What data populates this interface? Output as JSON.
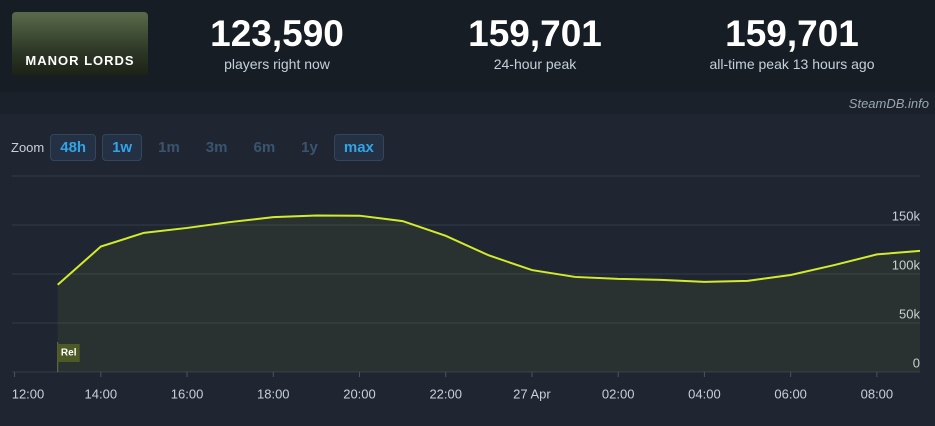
{
  "header": {
    "game": "MANOR LORDS",
    "stats": [
      {
        "value": "123,590",
        "label": "players right now"
      },
      {
        "value": "159,701",
        "label": "24-hour peak"
      },
      {
        "value": "159,701",
        "label": "all-time peak 13 hours ago"
      }
    ],
    "source": "SteamDB.info"
  },
  "zoom": {
    "label": "Zoom",
    "options": [
      "48h",
      "1w",
      "1m",
      "3m",
      "6m",
      "1y",
      "max"
    ],
    "enabled": [
      true,
      true,
      false,
      false,
      false,
      false,
      true
    ]
  },
  "chart_data": {
    "type": "line",
    "x": [
      1,
      2,
      3,
      4,
      5,
      6,
      7,
      8,
      9,
      10,
      11,
      12,
      13,
      14,
      15,
      16,
      17,
      18,
      19,
      20,
      21
    ],
    "series": [
      {
        "name": "Players",
        "color": "#d2ec2b",
        "values": [
          89000,
          128000,
          142000,
          147000,
          153000,
          158000,
          159701,
          159500,
          154000,
          139000,
          119000,
          104000,
          97000,
          95000,
          94000,
          92000,
          93000,
          99000,
          109000,
          120000,
          123590
        ]
      }
    ],
    "xlim": [
      -0.06,
      21
    ],
    "xticks": [
      {
        "value": 0,
        "label": "12:00"
      },
      {
        "value": 2,
        "label": "14:00"
      },
      {
        "value": 4,
        "label": "16:00"
      },
      {
        "value": 6,
        "label": "18:00"
      },
      {
        "value": 8,
        "label": "20:00"
      },
      {
        "value": 10,
        "label": "22:00"
      },
      {
        "value": 12,
        "label": "27 Apr"
      },
      {
        "value": 14,
        "label": "02:00"
      },
      {
        "value": 16,
        "label": "04:00"
      },
      {
        "value": 18,
        "label": "06:00"
      },
      {
        "value": 20,
        "label": "08:00"
      }
    ],
    "ylim": [
      0,
      200000
    ],
    "yticks": [
      0,
      {
        "value": 50000,
        "label": "50k"
      },
      {
        "value": 100000,
        "label": "100k"
      },
      {
        "value": 150000,
        "label": "150k"
      }
    ],
    "grid": true,
    "annotations": [
      {
        "x": 1,
        "label": "Rel"
      }
    ]
  }
}
